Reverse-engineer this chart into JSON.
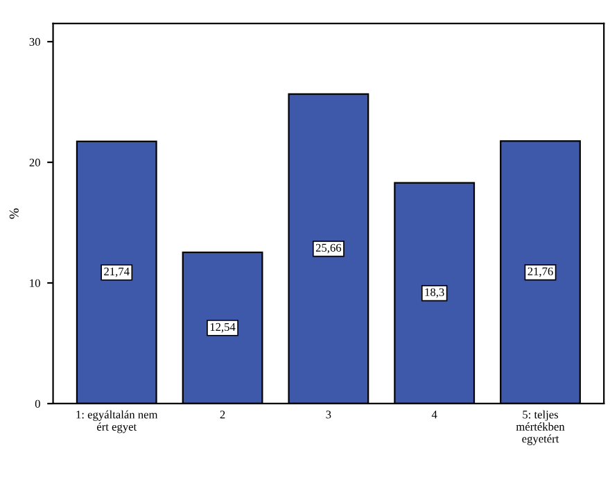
{
  "chart_data": {
    "type": "bar",
    "ylabel": "%",
    "categories": [
      "1: egyáltalán nem\nért egyet",
      "2",
      "3",
      "4",
      "5: teljes\nmértékben\negyetért"
    ],
    "values": [
      21.74,
      12.54,
      25.66,
      18.3,
      21.76
    ],
    "value_labels": [
      "21,74",
      "12,54",
      "25,66",
      "18,3",
      "21,76"
    ],
    "color": "#3f59aa",
    "ylim": [
      0,
      31.5
    ],
    "yticks": [
      0,
      10,
      20,
      30
    ],
    "grid": false,
    "legend": false
  }
}
